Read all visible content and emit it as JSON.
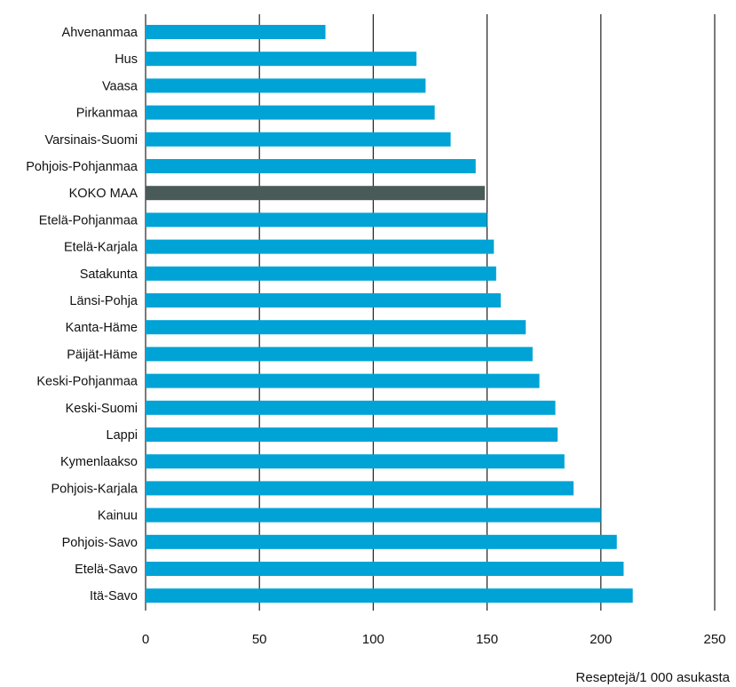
{
  "chart_data": {
    "type": "bar",
    "orientation": "horizontal",
    "categories": [
      "Ahvenanmaa",
      "Hus",
      "Vaasa",
      "Pirkanmaa",
      "Varsinais-Suomi",
      "Pohjois-Pohjanmaa",
      "KOKO MAA",
      "Etelä-Pohjanmaa",
      "Etelä-Karjala",
      "Satakunta",
      "Länsi-Pohja",
      "Kanta-Häme",
      "Päijät-Häme",
      "Keski-Pohjanmaa",
      "Keski-Suomi",
      "Lappi",
      "Kymenlaakso",
      "Pohjois-Karjala",
      "Kainuu",
      "Pohjois-Savo",
      "Etelä-Savo",
      "Itä-Savo"
    ],
    "values": [
      79,
      119,
      123,
      127,
      134,
      145,
      149,
      150,
      153,
      154,
      156,
      167,
      170,
      173,
      180,
      181,
      184,
      188,
      200,
      207,
      210,
      214
    ],
    "highlight_category": "KOKO MAA",
    "xlim": [
      0,
      250
    ],
    "xticks": [
      0,
      50,
      100,
      150,
      200,
      250
    ],
    "xlabel": "Reseptejä/1 000 asukasta",
    "ylabel": "",
    "title": "",
    "grid": "vertical",
    "colors": {
      "bar": "#00a3d6",
      "highlight_bar": "#4a5a58",
      "grid": "#222222",
      "text": "#111111"
    }
  }
}
